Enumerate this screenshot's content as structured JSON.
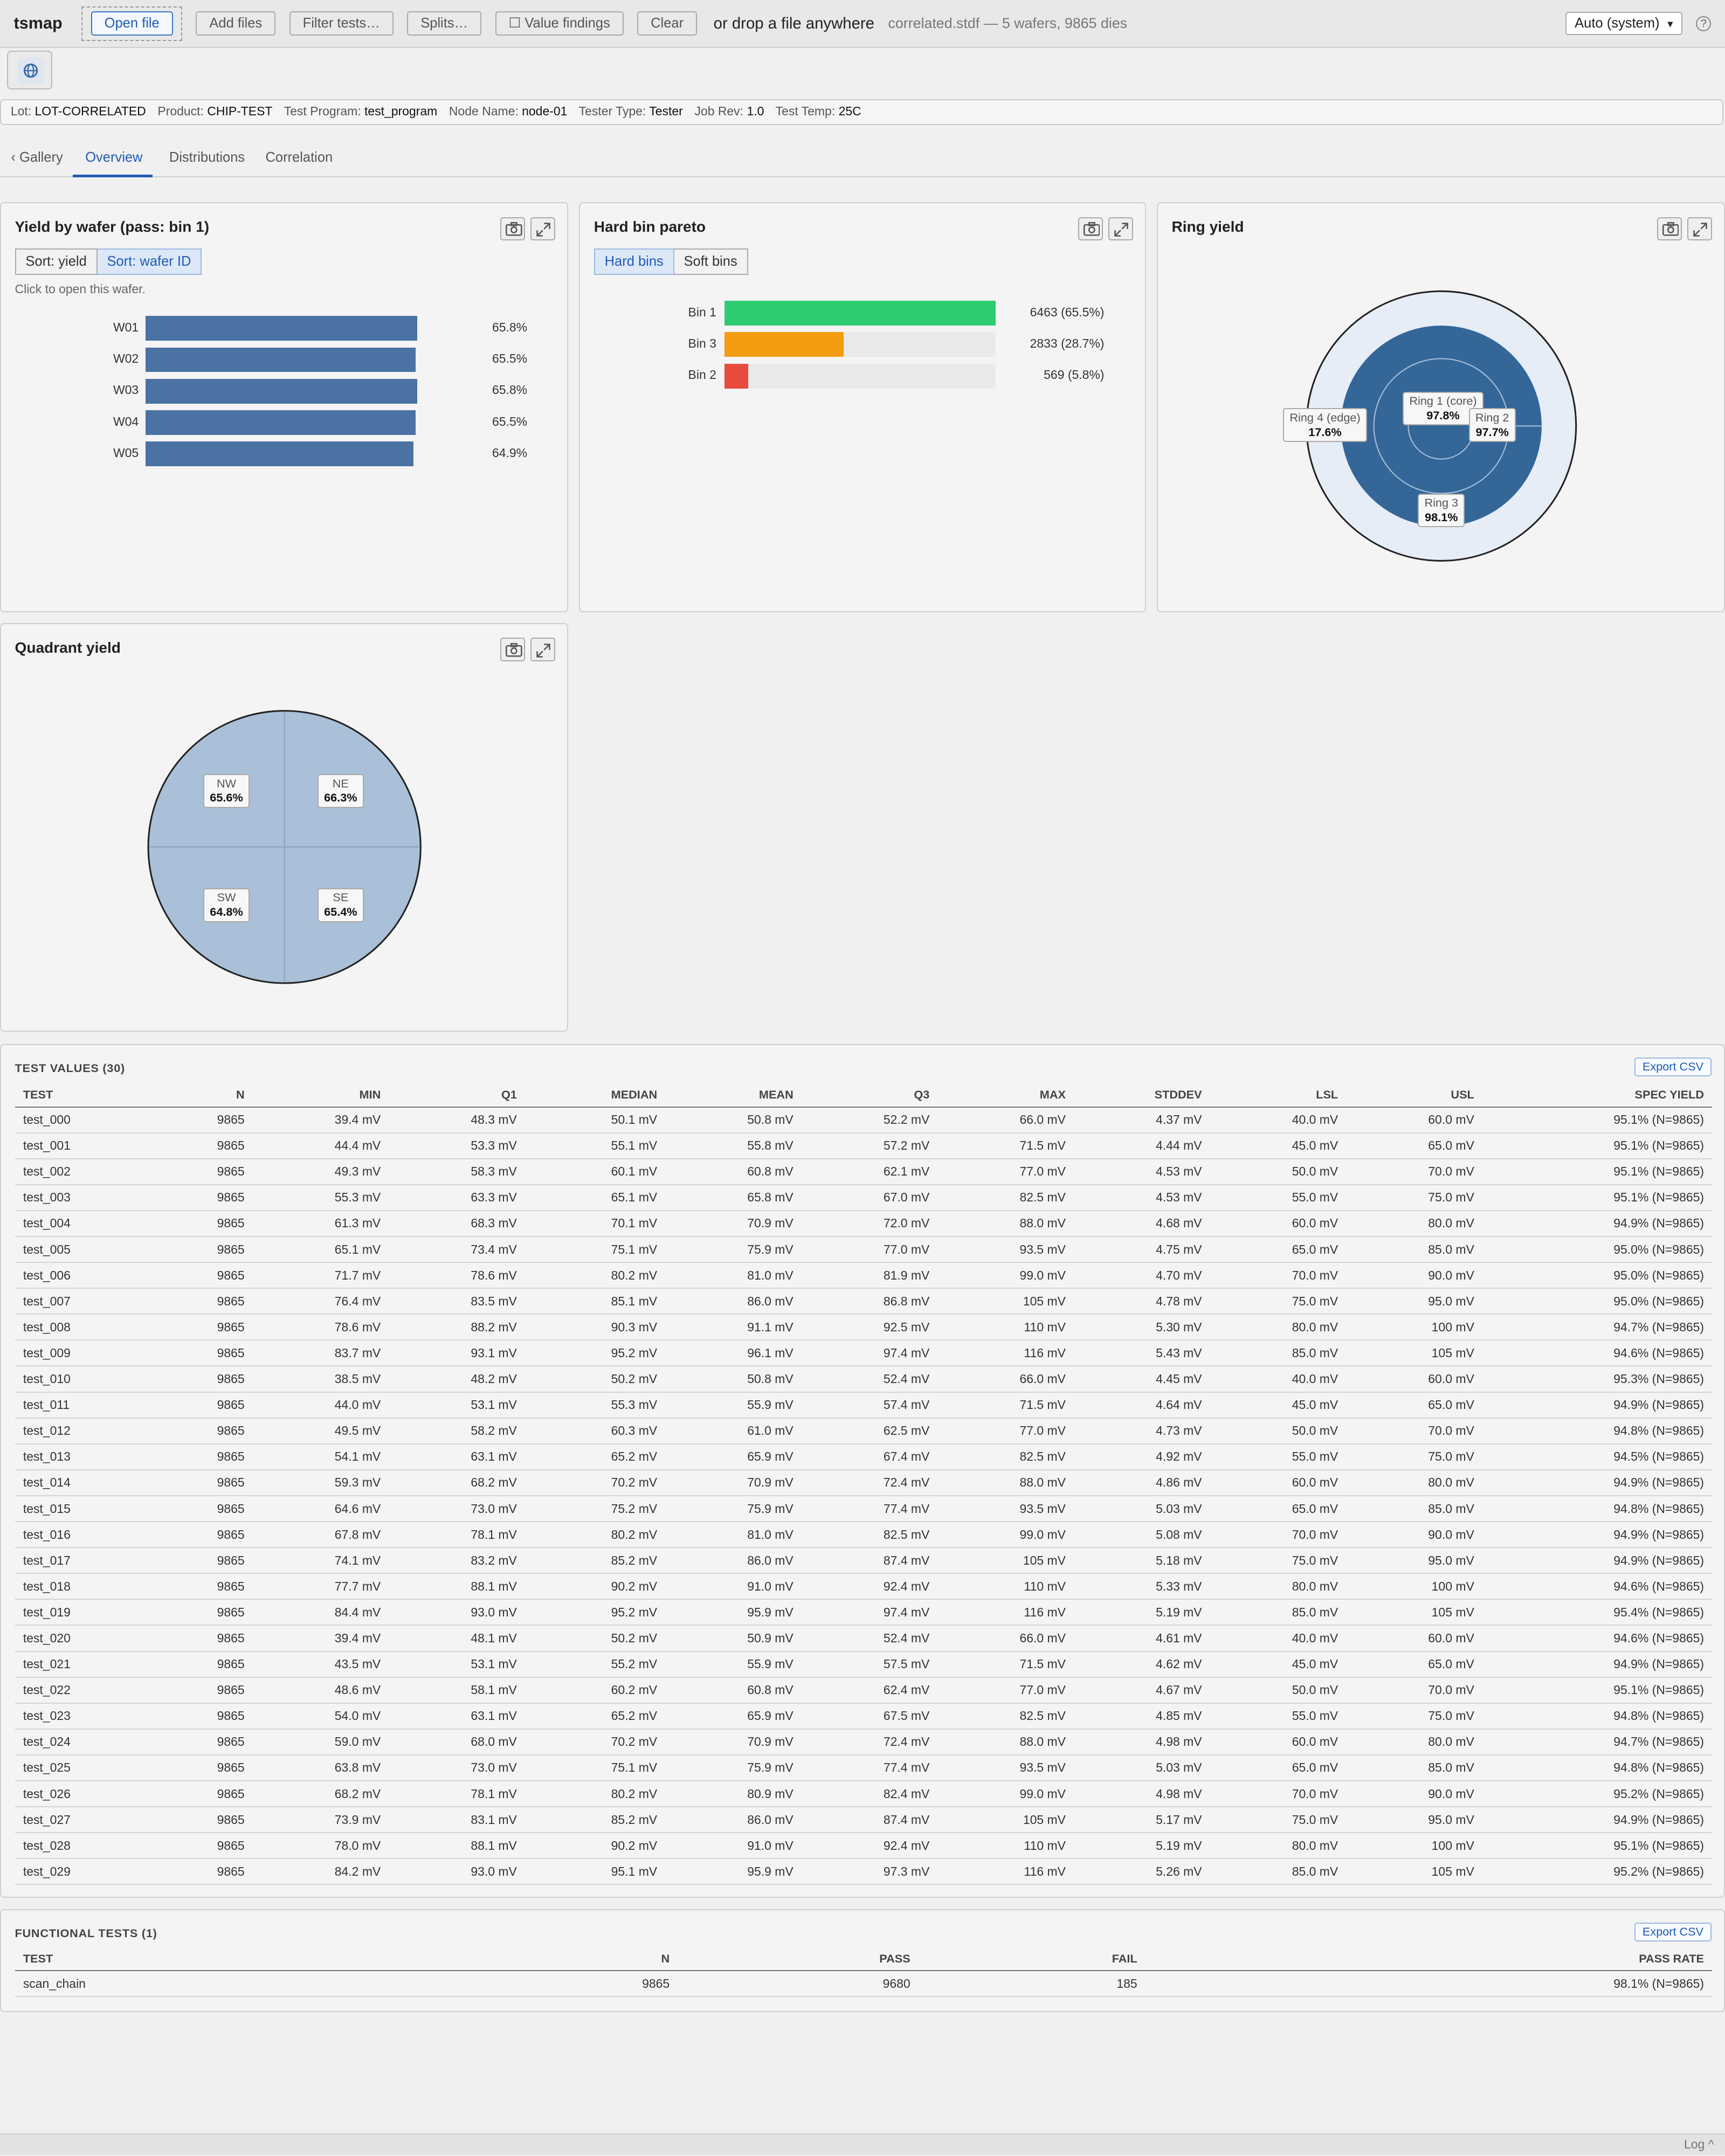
{
  "toolbar": {
    "app_title": "tsmap",
    "open_file": "Open file",
    "add_files": "Add files",
    "filter_tests": "Filter tests…",
    "splits": "Splits…",
    "value_findings": "☐ Value findings",
    "clear": "Clear",
    "drop_text": "or drop a file anywhere",
    "file_info": "correlated.stdf — 5 wafers, 9865 dies",
    "theme": "Auto (system)",
    "theme_arrow": "▾",
    "help": "?"
  },
  "info": {
    "lot_k": "Lot:",
    "lot_v": "LOT-CORRELATED",
    "product_k": "Product:",
    "product_v": "CHIP-TEST",
    "program_k": "Test Program:",
    "program_v": "test_program",
    "node_k": "Node Name:",
    "node_v": "node-01",
    "tester_k": "Tester Type:",
    "tester_v": "Tester",
    "jobrev_k": "Job Rev:",
    "jobrev_v": "1.0",
    "temp_k": "Test Temp:",
    "temp_v": "25C"
  },
  "tabs": {
    "gallery": "‹ Gallery",
    "overview": "Overview",
    "distributions": "Distributions",
    "correlation": "Correlation"
  },
  "yield_card": {
    "title": "Yield by wafer (pass: bin 1)",
    "sort_yield": "Sort: yield",
    "sort_wafer": "Sort: wafer ID",
    "hint": "Click to open this wafer.",
    "color": "#4a72a3"
  },
  "pareto_card": {
    "title": "Hard bin pareto",
    "hard_bins": "Hard bins",
    "soft_bins": "Soft bins"
  },
  "ring_card": {
    "title": "Ring yield"
  },
  "quad_card": {
    "title": "Quadrant yield"
  },
  "chart_data": [
    {
      "type": "bar",
      "orientation": "horizontal",
      "categories": [
        "W01",
        "W02",
        "W03",
        "W04",
        "W05"
      ],
      "values": [
        65.8,
        65.5,
        65.8,
        65.5,
        64.9
      ],
      "labels": [
        "65.8%",
        "65.5%",
        "65.8%",
        "65.5%",
        "64.9%"
      ],
      "xlim": [
        0,
        66
      ]
    },
    {
      "type": "bar",
      "orientation": "horizontal",
      "categories": [
        "Bin 1",
        "Bin 3",
        "Bin 2"
      ],
      "values": [
        6463,
        2833,
        569
      ],
      "labels": [
        "6463 (65.5%)",
        "2833 (28.7%)",
        "569 (5.8%)"
      ],
      "colors": [
        "#2ecc71",
        "#f39c12",
        "#e74c3c"
      ],
      "xlim": [
        0,
        6463
      ]
    },
    {
      "type": "pie",
      "variant": "rings",
      "categories": [
        "Ring 1 (core)",
        "Ring 2",
        "Ring 3",
        "Ring 4 (edge)"
      ],
      "values": [
        97.8,
        97.7,
        98.1,
        17.6
      ],
      "labels": [
        "97.8%",
        "97.7%",
        "98.1%",
        "17.6%"
      ]
    },
    {
      "type": "pie",
      "variant": "quadrants",
      "categories": [
        "NW",
        "NE",
        "SW",
        "SE"
      ],
      "values": [
        65.6,
        66.3,
        64.8,
        65.4
      ],
      "labels": [
        "65.6%",
        "66.3%",
        "64.8%",
        "65.4%"
      ]
    }
  ],
  "test_values": {
    "title": "TEST VALUES (30)",
    "export": "Export CSV",
    "headers": [
      "TEST",
      "N",
      "MIN",
      "Q1",
      "MEDIAN",
      "MEAN",
      "Q3",
      "MAX",
      "STDDEV",
      "LSL",
      "USL",
      "SPEC YIELD"
    ],
    "rows": [
      [
        "test_000",
        "9865",
        "39.4 mV",
        "48.3 mV",
        "50.1 mV",
        "50.8 mV",
        "52.2 mV",
        "66.0 mV",
        "4.37 mV",
        "40.0 mV",
        "60.0 mV",
        "95.1% (N=9865)"
      ],
      [
        "test_001",
        "9865",
        "44.4 mV",
        "53.3 mV",
        "55.1 mV",
        "55.8 mV",
        "57.2 mV",
        "71.5 mV",
        "4.44 mV",
        "45.0 mV",
        "65.0 mV",
        "95.1% (N=9865)"
      ],
      [
        "test_002",
        "9865",
        "49.3 mV",
        "58.3 mV",
        "60.1 mV",
        "60.8 mV",
        "62.1 mV",
        "77.0 mV",
        "4.53 mV",
        "50.0 mV",
        "70.0 mV",
        "95.1% (N=9865)"
      ],
      [
        "test_003",
        "9865",
        "55.3 mV",
        "63.3 mV",
        "65.1 mV",
        "65.8 mV",
        "67.0 mV",
        "82.5 mV",
        "4.53 mV",
        "55.0 mV",
        "75.0 mV",
        "95.1% (N=9865)"
      ],
      [
        "test_004",
        "9865",
        "61.3 mV",
        "68.3 mV",
        "70.1 mV",
        "70.9 mV",
        "72.0 mV",
        "88.0 mV",
        "4.68 mV",
        "60.0 mV",
        "80.0 mV",
        "94.9% (N=9865)"
      ],
      [
        "test_005",
        "9865",
        "65.1 mV",
        "73.4 mV",
        "75.1 mV",
        "75.9 mV",
        "77.0 mV",
        "93.5 mV",
        "4.75 mV",
        "65.0 mV",
        "85.0 mV",
        "95.0% (N=9865)"
      ],
      [
        "test_006",
        "9865",
        "71.7 mV",
        "78.6 mV",
        "80.2 mV",
        "81.0 mV",
        "81.9 mV",
        "99.0 mV",
        "4.70 mV",
        "70.0 mV",
        "90.0 mV",
        "95.0% (N=9865)"
      ],
      [
        "test_007",
        "9865",
        "76.4 mV",
        "83.5 mV",
        "85.1 mV",
        "86.0 mV",
        "86.8 mV",
        "105 mV",
        "4.78 mV",
        "75.0 mV",
        "95.0 mV",
        "95.0% (N=9865)"
      ],
      [
        "test_008",
        "9865",
        "78.6 mV",
        "88.2 mV",
        "90.3 mV",
        "91.1 mV",
        "92.5 mV",
        "110 mV",
        "5.30 mV",
        "80.0 mV",
        "100 mV",
        "94.7% (N=9865)"
      ],
      [
        "test_009",
        "9865",
        "83.7 mV",
        "93.1 mV",
        "95.2 mV",
        "96.1 mV",
        "97.4 mV",
        "116 mV",
        "5.43 mV",
        "85.0 mV",
        "105 mV",
        "94.6% (N=9865)"
      ],
      [
        "test_010",
        "9865",
        "38.5 mV",
        "48.2 mV",
        "50.2 mV",
        "50.8 mV",
        "52.4 mV",
        "66.0 mV",
        "4.45 mV",
        "40.0 mV",
        "60.0 mV",
        "95.3% (N=9865)"
      ],
      [
        "test_011",
        "9865",
        "44.0 mV",
        "53.1 mV",
        "55.3 mV",
        "55.9 mV",
        "57.4 mV",
        "71.5 mV",
        "4.64 mV",
        "45.0 mV",
        "65.0 mV",
        "94.9% (N=9865)"
      ],
      [
        "test_012",
        "9865",
        "49.5 mV",
        "58.2 mV",
        "60.3 mV",
        "61.0 mV",
        "62.5 mV",
        "77.0 mV",
        "4.73 mV",
        "50.0 mV",
        "70.0 mV",
        "94.8% (N=9865)"
      ],
      [
        "test_013",
        "9865",
        "54.1 mV",
        "63.1 mV",
        "65.2 mV",
        "65.9 mV",
        "67.4 mV",
        "82.5 mV",
        "4.92 mV",
        "55.0 mV",
        "75.0 mV",
        "94.5% (N=9865)"
      ],
      [
        "test_014",
        "9865",
        "59.3 mV",
        "68.2 mV",
        "70.2 mV",
        "70.9 mV",
        "72.4 mV",
        "88.0 mV",
        "4.86 mV",
        "60.0 mV",
        "80.0 mV",
        "94.9% (N=9865)"
      ],
      [
        "test_015",
        "9865",
        "64.6 mV",
        "73.0 mV",
        "75.2 mV",
        "75.9 mV",
        "77.4 mV",
        "93.5 mV",
        "5.03 mV",
        "65.0 mV",
        "85.0 mV",
        "94.8% (N=9865)"
      ],
      [
        "test_016",
        "9865",
        "67.8 mV",
        "78.1 mV",
        "80.2 mV",
        "81.0 mV",
        "82.5 mV",
        "99.0 mV",
        "5.08 mV",
        "70.0 mV",
        "90.0 mV",
        "94.9% (N=9865)"
      ],
      [
        "test_017",
        "9865",
        "74.1 mV",
        "83.2 mV",
        "85.2 mV",
        "86.0 mV",
        "87.4 mV",
        "105 mV",
        "5.18 mV",
        "75.0 mV",
        "95.0 mV",
        "94.9% (N=9865)"
      ],
      [
        "test_018",
        "9865",
        "77.7 mV",
        "88.1 mV",
        "90.2 mV",
        "91.0 mV",
        "92.4 mV",
        "110 mV",
        "5.33 mV",
        "80.0 mV",
        "100 mV",
        "94.6% (N=9865)"
      ],
      [
        "test_019",
        "9865",
        "84.4 mV",
        "93.0 mV",
        "95.2 mV",
        "95.9 mV",
        "97.4 mV",
        "116 mV",
        "5.19 mV",
        "85.0 mV",
        "105 mV",
        "95.4% (N=9865)"
      ],
      [
        "test_020",
        "9865",
        "39.4 mV",
        "48.1 mV",
        "50.2 mV",
        "50.9 mV",
        "52.4 mV",
        "66.0 mV",
        "4.61 mV",
        "40.0 mV",
        "60.0 mV",
        "94.6% (N=9865)"
      ],
      [
        "test_021",
        "9865",
        "43.5 mV",
        "53.1 mV",
        "55.2 mV",
        "55.9 mV",
        "57.5 mV",
        "71.5 mV",
        "4.62 mV",
        "45.0 mV",
        "65.0 mV",
        "94.9% (N=9865)"
      ],
      [
        "test_022",
        "9865",
        "48.6 mV",
        "58.1 mV",
        "60.2 mV",
        "60.8 mV",
        "62.4 mV",
        "77.0 mV",
        "4.67 mV",
        "50.0 mV",
        "70.0 mV",
        "95.1% (N=9865)"
      ],
      [
        "test_023",
        "9865",
        "54.0 mV",
        "63.1 mV",
        "65.2 mV",
        "65.9 mV",
        "67.5 mV",
        "82.5 mV",
        "4.85 mV",
        "55.0 mV",
        "75.0 mV",
        "94.8% (N=9865)"
      ],
      [
        "test_024",
        "9865",
        "59.0 mV",
        "68.0 mV",
        "70.2 mV",
        "70.9 mV",
        "72.4 mV",
        "88.0 mV",
        "4.98 mV",
        "60.0 mV",
        "80.0 mV",
        "94.7% (N=9865)"
      ],
      [
        "test_025",
        "9865",
        "63.8 mV",
        "73.0 mV",
        "75.1 mV",
        "75.9 mV",
        "77.4 mV",
        "93.5 mV",
        "5.03 mV",
        "65.0 mV",
        "85.0 mV",
        "94.8% (N=9865)"
      ],
      [
        "test_026",
        "9865",
        "68.2 mV",
        "78.1 mV",
        "80.2 mV",
        "80.9 mV",
        "82.4 mV",
        "99.0 mV",
        "4.98 mV",
        "70.0 mV",
        "90.0 mV",
        "95.2% (N=9865)"
      ],
      [
        "test_027",
        "9865",
        "73.9 mV",
        "83.1 mV",
        "85.2 mV",
        "86.0 mV",
        "87.4 mV",
        "105 mV",
        "5.17 mV",
        "75.0 mV",
        "95.0 mV",
        "94.9% (N=9865)"
      ],
      [
        "test_028",
        "9865",
        "78.0 mV",
        "88.1 mV",
        "90.2 mV",
        "91.0 mV",
        "92.4 mV",
        "110 mV",
        "5.19 mV",
        "80.0 mV",
        "100 mV",
        "95.1% (N=9865)"
      ],
      [
        "test_029",
        "9865",
        "84.2 mV",
        "93.0 mV",
        "95.1 mV",
        "95.9 mV",
        "97.3 mV",
        "116 mV",
        "5.26 mV",
        "85.0 mV",
        "105 mV",
        "95.2% (N=9865)"
      ]
    ]
  },
  "functional": {
    "title": "FUNCTIONAL TESTS (1)",
    "export": "Export CSV",
    "headers": [
      "TEST",
      "N",
      "PASS",
      "FAIL",
      "PASS RATE"
    ],
    "rows": [
      [
        "scan_chain",
        "9865",
        "9680",
        "185",
        "98.1% (N=9865)"
      ]
    ]
  },
  "statusbar": {
    "log": "Log ^"
  }
}
